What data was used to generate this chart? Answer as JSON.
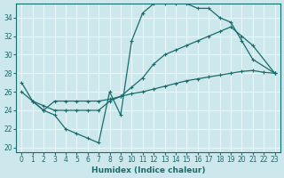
{
  "xlabel": "Humidex (Indice chaleur)",
  "bg_color": "#cde8ec",
  "grid_color": "#e8f8fa",
  "line_color": "#1a6b6b",
  "xlim": [
    -0.5,
    23.5
  ],
  "ylim": [
    19.5,
    35.5
  ],
  "yticks": [
    20,
    22,
    24,
    26,
    28,
    30,
    32,
    34
  ],
  "xticks": [
    0,
    1,
    2,
    3,
    4,
    5,
    6,
    7,
    8,
    9,
    10,
    11,
    12,
    13,
    14,
    15,
    16,
    17,
    18,
    19,
    20,
    21,
    22,
    23
  ],
  "line1_x": [
    0,
    1,
    2,
    3,
    4,
    5,
    6,
    7,
    8,
    9,
    10,
    11,
    12,
    13,
    14,
    15,
    16,
    17,
    18,
    19,
    20,
    21,
    23
  ],
  "line1_y": [
    27,
    25,
    24,
    23.5,
    22,
    21.5,
    21,
    20.5,
    26,
    23.5,
    31.5,
    34.5,
    35.5,
    35.5,
    35.5,
    35.5,
    35.0,
    35.0,
    34.0,
    33.5,
    31.5,
    29.5,
    28.0
  ],
  "line2_x": [
    0,
    1,
    2,
    3,
    4,
    5,
    6,
    7,
    8,
    9,
    10,
    11,
    12,
    13,
    14,
    15,
    16,
    17,
    18,
    19,
    20,
    21,
    23
  ],
  "line2_y": [
    26,
    25,
    24.5,
    24,
    24,
    24,
    24,
    24,
    25,
    25.5,
    26.5,
    27.5,
    29,
    30,
    30.5,
    31,
    31.5,
    32,
    32.5,
    33,
    32,
    31,
    28
  ],
  "line3_x": [
    1,
    2,
    3,
    4,
    5,
    6,
    7,
    8,
    9,
    10,
    11,
    12,
    13,
    14,
    15,
    16,
    17,
    18,
    19,
    20,
    21,
    22,
    23
  ],
  "line3_y": [
    25,
    24,
    25,
    25,
    25,
    25,
    25,
    25.2,
    25.5,
    25.8,
    26,
    26.3,
    26.6,
    26.9,
    27.2,
    27.4,
    27.6,
    27.8,
    28.0,
    28.2,
    28.3,
    28.1,
    28.0
  ]
}
